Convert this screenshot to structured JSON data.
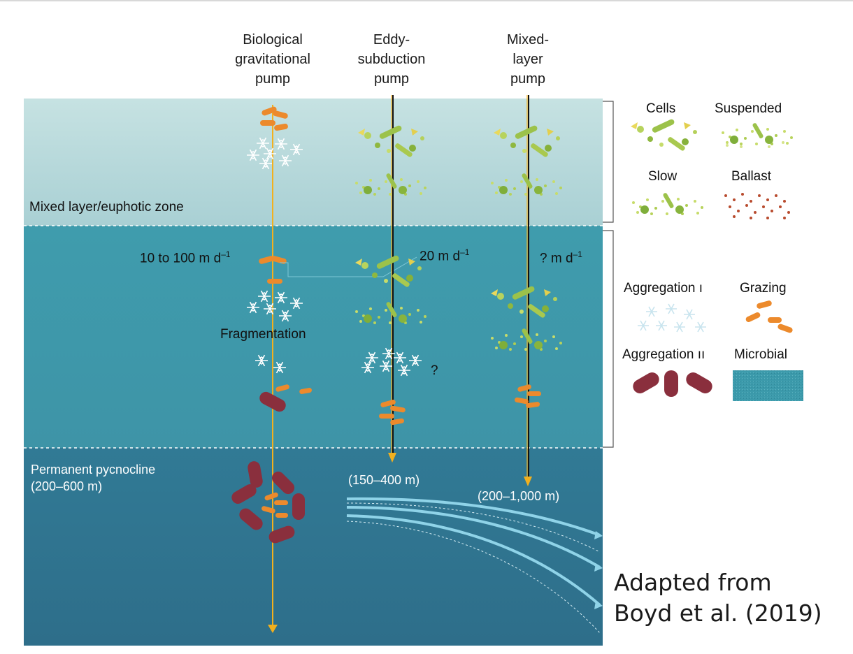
{
  "pumps": {
    "biological": "Biological gravitational pump",
    "biological_lines": [
      "Biological",
      "gravitational",
      "pump"
    ],
    "eddy_lines": [
      "Eddy-",
      "subduction",
      "pump"
    ],
    "mixed_lines": [
      "Mixed-",
      "layer",
      "pump"
    ]
  },
  "zones": {
    "mixed_layer": "Mixed layer/euphotic zone",
    "pycnocline_line1": "Permanent pycnocline",
    "pycnocline_line2": "(200–600 m)"
  },
  "rates": {
    "biological": "10 to 100 m d",
    "eddy": "20 m d",
    "mixed": "? m d",
    "exponent": "–1"
  },
  "labels": {
    "fragmentation": "Fragmentation",
    "question": "?",
    "eddy_depth": "(150–400 m)",
    "mixed_depth": "(200–1,000 m)"
  },
  "legend": {
    "cells": "Cells",
    "suspended": "Suspended",
    "slow": "Slow",
    "ballast": "Ballast",
    "aggregation_1": "Aggregation ı",
    "grazing": "Grazing",
    "aggregation_2": "Aggregation ıı",
    "microbial": "Microbial"
  },
  "credit": {
    "line1": "Adapted from",
    "line2": "Boyd et al. (2019)"
  },
  "colors": {
    "surface": "#bcdcdd",
    "mid_ocean": "#3f9aab",
    "deep_ocean": "#2e6f8c",
    "arrow": "#f2b01e",
    "grazing": "#ec8a2c",
    "aggregate": "#8a2f3d",
    "phyto": "#a8c94a",
    "flow": "#8fd3e8"
  }
}
